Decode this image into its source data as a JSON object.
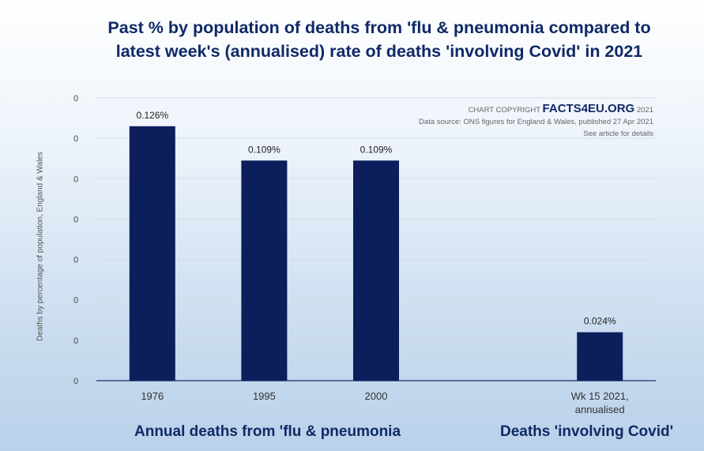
{
  "chart_data": {
    "type": "bar",
    "title_lines": [
      "Past % by population of deaths from 'flu & pneumonia compared to",
      "latest week's (annualised) rate of deaths 'involving Covid' in 2021"
    ],
    "ylabel": "Deaths by percentage of population, England & Wales",
    "ylim": [
      0,
      0.14
    ],
    "ytick_labels": [
      "0",
      "0",
      "0",
      "0",
      "0",
      "0",
      "0",
      "0"
    ],
    "categories": [
      "1976",
      "1995",
      "2000",
      "",
      "Wk 15 2021, annualised"
    ],
    "category_label_lines": [
      [
        "1976"
      ],
      [
        "1995"
      ],
      [
        "2000"
      ],
      [
        ""
      ],
      [
        "Wk 15 2021,",
        "annualised"
      ]
    ],
    "values": [
      0.126,
      0.109,
      0.109,
      null,
      0.024
    ],
    "data_labels": [
      "0.126%",
      "0.109%",
      "0.109%",
      "",
      "0.024%"
    ],
    "bar_color": "#0c1f5c",
    "group_labels": [
      "Annual deaths from 'flu & pneumonia",
      "Deaths 'involving Covid'"
    ]
  },
  "copyright": {
    "prefix": "CHART COPYRIGHT",
    "brand": "FACTS4EU.ORG",
    "year": "2021",
    "source": "Data source: ONS figures for England & Wales, published 27 Apr 2021",
    "note": "See article for details"
  }
}
